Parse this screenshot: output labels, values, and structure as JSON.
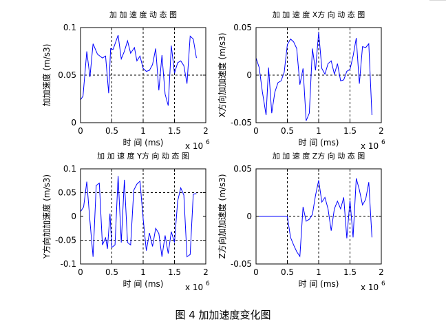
{
  "figure": {
    "caption": "图 4  加加速度变化图",
    "line_color": "#0000ff"
  },
  "chart_data": [
    {
      "type": "line",
      "title": "加 加 速 度 动 态 图",
      "xlabel": "时 间 (ms)",
      "ylabel": "加加速度 (m/s3)",
      "x_multiplier": "x 10",
      "x_multiplier_exp": "6",
      "xlim": [
        0,
        2
      ],
      "ylim": [
        0,
        0.1
      ],
      "xticks": [
        0,
        0.5,
        1,
        1.5,
        2
      ],
      "yticks": [
        0,
        0.05,
        0.1
      ],
      "xtick_labels": [
        "0",
        "0.5",
        "1",
        "1.5",
        "2"
      ],
      "ytick_labels": [
        "0",
        "0.05",
        "0.1"
      ],
      "grid": "dashed",
      "guide_x": [
        0.5,
        1.0,
        1.5
      ],
      "guide_y": [
        0.05
      ],
      "series": [
        {
          "x": [
            0,
            0.04,
            0.1,
            0.15,
            0.2,
            0.27,
            0.35,
            0.4,
            0.45,
            0.48,
            0.52,
            0.6,
            0.65,
            0.7,
            0.75,
            0.8,
            0.86,
            0.9,
            0.95,
            1.0,
            1.05,
            1.1,
            1.15,
            1.2,
            1.25,
            1.3,
            1.35,
            1.4,
            1.45,
            1.5,
            1.55,
            1.6,
            1.65,
            1.7,
            1.75,
            1.8,
            1.85
          ],
          "y": [
            0.024,
            0.028,
            0.075,
            0.048,
            0.083,
            0.072,
            0.068,
            0.07,
            0.031,
            0.078,
            0.077,
            0.092,
            0.067,
            0.075,
            0.086,
            0.073,
            0.079,
            0.065,
            0.07,
            0.057,
            0.054,
            0.055,
            0.061,
            0.078,
            0.034,
            0.071,
            0.03,
            0.018,
            0.081,
            0.052,
            0.063,
            0.065,
            0.06,
            0.041,
            0.091,
            0.088,
            0.068
          ]
        }
      ]
    },
    {
      "type": "line",
      "title": "加 加 速 度 X方 向 动 态 图",
      "xlabel": "时 间 (ms)",
      "ylabel": "X方向加加速度 (m/s3)",
      "x_multiplier": "x 10",
      "x_multiplier_exp": "6",
      "xlim": [
        0,
        2
      ],
      "ylim": [
        -0.05,
        0.05
      ],
      "xticks": [
        0,
        0.5,
        1,
        1.5,
        2
      ],
      "yticks": [
        -0.05,
        0,
        0.05
      ],
      "xtick_labels": [
        "0",
        "0.5",
        "1",
        "1.5",
        "2"
      ],
      "ytick_labels": [
        "-0.05",
        "0",
        "0.05"
      ],
      "grid": "dashed",
      "guide_x": [
        0.5,
        1.0,
        1.5
      ],
      "guide_y": [
        0
      ],
      "series": [
        {
          "x": [
            0,
            0.05,
            0.1,
            0.16,
            0.2,
            0.25,
            0.3,
            0.35,
            0.4,
            0.45,
            0.5,
            0.55,
            0.6,
            0.65,
            0.7,
            0.75,
            0.8,
            0.85,
            0.9,
            0.95,
            1.0,
            1.05,
            1.1,
            1.15,
            1.2,
            1.25,
            1.3,
            1.35,
            1.4,
            1.45,
            1.5,
            1.55,
            1.6,
            1.65,
            1.7,
            1.75,
            1.8,
            1.85
          ],
          "y": [
            0.018,
            0.008,
            -0.017,
            -0.042,
            0.008,
            -0.04,
            -0.018,
            -0.008,
            -0.006,
            0.003,
            0.032,
            0.038,
            0.035,
            0.028,
            -0.01,
            0.007,
            -0.048,
            -0.04,
            0.028,
            0.005,
            0.045,
            0.007,
            0.001,
            0.012,
            0.015,
            0.001,
            0.012,
            -0.006,
            -0.005,
            0.004,
            0.006,
            0.02,
            0.039,
            -0.009,
            0.03,
            0.029,
            0.033,
            -0.042
          ]
        }
      ]
    },
    {
      "type": "line",
      "title": "加 加 速 度 Y方 向 动 态 图",
      "xlabel": "时 间 (ms)",
      "ylabel": "Y方向加加速度 (m/s3)",
      "x_multiplier": "x 10",
      "x_multiplier_exp": "6",
      "xlim": [
        0,
        2
      ],
      "ylim": [
        -0.1,
        0.1
      ],
      "xticks": [
        0,
        0.5,
        1,
        1.5,
        2
      ],
      "yticks": [
        -0.1,
        -0.05,
        0,
        0.05,
        0.1
      ],
      "xtick_labels": [
        "0",
        "0.5",
        "1",
        "1.5",
        "2"
      ],
      "ytick_labels": [
        "-0.1",
        "-0.05",
        "0",
        "0.05",
        "0.1"
      ],
      "grid": "dashed",
      "guide_x": [
        0.5,
        1.0,
        1.5
      ],
      "guide_y": [
        -0.05,
        0.05
      ],
      "series": [
        {
          "x": [
            0,
            0.05,
            0.1,
            0.15,
            0.2,
            0.25,
            0.3,
            0.35,
            0.4,
            0.43,
            0.47,
            0.5,
            0.55,
            0.6,
            0.65,
            0.7,
            0.75,
            0.8,
            0.85,
            0.9,
            0.95,
            1.0,
            1.05,
            1.1,
            1.15,
            1.2,
            1.25,
            1.3,
            1.35,
            1.4,
            1.45,
            1.5,
            1.55,
            1.6,
            1.65,
            1.7,
            1.75,
            1.8,
            1.85
          ],
          "y": [
            0.01,
            0.02,
            0.073,
            -0.01,
            -0.085,
            0.065,
            0.07,
            -0.06,
            -0.045,
            -0.068,
            0.006,
            -0.065,
            -0.06,
            0.085,
            -0.055,
            0.077,
            -0.055,
            -0.06,
            0.055,
            0.068,
            0.074,
            -0.005,
            -0.072,
            -0.035,
            -0.063,
            -0.025,
            -0.036,
            -0.085,
            -0.04,
            -0.078,
            -0.032,
            -0.055,
            0.032,
            0.06,
            0.045,
            -0.085,
            -0.08,
            0.047,
            0.048
          ]
        }
      ]
    },
    {
      "type": "line",
      "title": "加 加 速 度 Z方 向 动 态 图",
      "xlabel": "时 间 (ms)",
      "ylabel": "Z方向加加速度 (m/s3)",
      "x_multiplier": "x 10",
      "x_multiplier_exp": "6",
      "xlim": [
        0,
        2
      ],
      "ylim": [
        -0.05,
        0.05
      ],
      "xticks": [
        0,
        0.5,
        1,
        1.5,
        2
      ],
      "yticks": [
        -0.05,
        0,
        0.05
      ],
      "xtick_labels": [
        "0",
        "0.5",
        "1",
        "1.5",
        "2"
      ],
      "ytick_labels": [
        "-0.05",
        "0",
        "0.05"
      ],
      "grid": "dashed",
      "guide_x": [
        0.5,
        1.0,
        1.5
      ],
      "guide_y": [
        0
      ],
      "series": [
        {
          "x": [
            0,
            0.3,
            0.5,
            0.55,
            0.6,
            0.65,
            0.7,
            0.75,
            0.8,
            0.85,
            0.9,
            0.95,
            1.0,
            1.05,
            1.1,
            1.15,
            1.2,
            1.25,
            1.3,
            1.35,
            1.4,
            1.45,
            1.5,
            1.55,
            1.6,
            1.65,
            1.7,
            1.75,
            1.8,
            1.85
          ],
          "y": [
            0,
            0,
            0,
            -0.022,
            -0.03,
            -0.037,
            -0.042,
            0.01,
            -0.005,
            -0.003,
            0.002,
            0.022,
            0.038,
            0.015,
            0.02,
            0.008,
            -0.015,
            0.008,
            0.016,
            0.008,
            0.02,
            -0.023,
            0.017,
            -0.022,
            0.04,
            0.028,
            0.012,
            0.018,
            0.036,
            -0.022
          ]
        }
      ]
    }
  ]
}
